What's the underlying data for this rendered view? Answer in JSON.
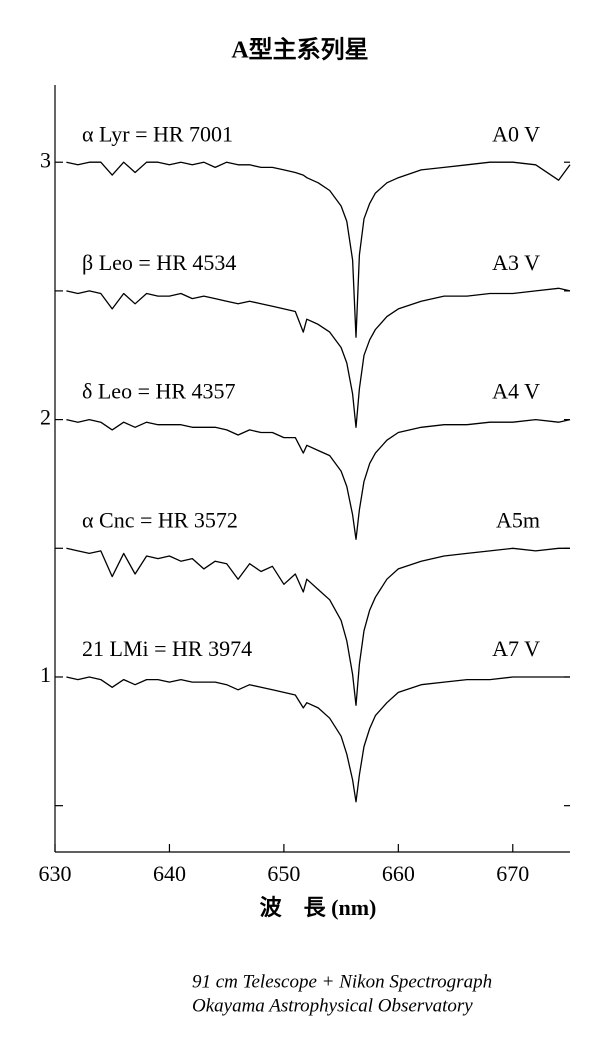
{
  "chart_data": {
    "type": "line",
    "title": "A型主系列星",
    "xlabel": "波　長 (nm)",
    "credits": [
      "91 cm Telescope + Nikon Spectrograph",
      "Okayama Astrophysical Observatory"
    ],
    "x": [
      631,
      632,
      633,
      634,
      635,
      636,
      637,
      638,
      639,
      640,
      641,
      642,
      643,
      644,
      645,
      646,
      647,
      648,
      649,
      650,
      651,
      651.7,
      652,
      653,
      654,
      655,
      655.5,
      656,
      656.3,
      656.6,
      657,
      657.5,
      658,
      659,
      660,
      662,
      664,
      666,
      668,
      670,
      672,
      674,
      675
    ],
    "xlim": [
      630,
      675
    ],
    "xticks": [
      630,
      640,
      650,
      660,
      670
    ],
    "ylim": [
      0.32,
      3.3
    ],
    "yticks": [
      1,
      2,
      3
    ],
    "yticks_minor": [
      0.5,
      1.5,
      2.5
    ],
    "series": [
      {
        "name": "α Lyr = HR 7001",
        "spectral_type": "A0 V",
        "color": "#000000",
        "values": [
          3.0,
          2.99,
          3.0,
          3.0,
          2.95,
          3.0,
          2.96,
          3.0,
          3.0,
          2.99,
          3.0,
          2.99,
          3.0,
          2.98,
          3.0,
          2.99,
          2.99,
          2.98,
          2.98,
          2.97,
          2.96,
          2.95,
          2.94,
          2.92,
          2.89,
          2.83,
          2.77,
          2.62,
          2.32,
          2.64,
          2.78,
          2.84,
          2.88,
          2.92,
          2.94,
          2.97,
          2.98,
          2.99,
          3.0,
          3.0,
          2.99,
          2.93,
          2.99
        ]
      },
      {
        "name": "β Leo = HR 4534",
        "spectral_type": "A3 V",
        "color": "#000000",
        "values": [
          2.5,
          2.49,
          2.5,
          2.49,
          2.43,
          2.49,
          2.45,
          2.49,
          2.48,
          2.48,
          2.49,
          2.47,
          2.48,
          2.47,
          2.46,
          2.45,
          2.46,
          2.45,
          2.44,
          2.43,
          2.42,
          2.34,
          2.39,
          2.37,
          2.34,
          2.28,
          2.22,
          2.1,
          1.97,
          2.12,
          2.25,
          2.31,
          2.35,
          2.4,
          2.43,
          2.46,
          2.48,
          2.48,
          2.49,
          2.49,
          2.5,
          2.51,
          2.5
        ]
      },
      {
        "name": "δ Leo = HR 4357",
        "spectral_type": "A4 V",
        "color": "#000000",
        "values": [
          2.0,
          1.99,
          2.0,
          1.99,
          1.96,
          1.99,
          1.97,
          1.99,
          1.98,
          1.98,
          1.98,
          1.97,
          1.97,
          1.97,
          1.96,
          1.94,
          1.96,
          1.95,
          1.95,
          1.93,
          1.93,
          1.87,
          1.9,
          1.88,
          1.86,
          1.8,
          1.74,
          1.63,
          1.535,
          1.65,
          1.76,
          1.83,
          1.87,
          1.92,
          1.95,
          1.97,
          1.98,
          1.98,
          1.99,
          1.99,
          2.0,
          1.99,
          2.0
        ]
      },
      {
        "name": "α Cnc = HR 3572",
        "spectral_type": "A5m",
        "color": "#000000",
        "values": [
          1.5,
          1.49,
          1.48,
          1.49,
          1.39,
          1.48,
          1.4,
          1.47,
          1.46,
          1.47,
          1.45,
          1.46,
          1.42,
          1.45,
          1.44,
          1.38,
          1.44,
          1.41,
          1.43,
          1.36,
          1.4,
          1.33,
          1.38,
          1.34,
          1.3,
          1.22,
          1.14,
          1.01,
          0.89,
          1.05,
          1.18,
          1.26,
          1.31,
          1.38,
          1.42,
          1.45,
          1.47,
          1.48,
          1.49,
          1.5,
          1.49,
          1.5,
          1.5
        ]
      },
      {
        "name": "21 LMi = HR 3974",
        "spectral_type": "A7 V",
        "color": "#000000",
        "values": [
          1.0,
          0.99,
          1.0,
          0.99,
          0.96,
          0.99,
          0.97,
          0.99,
          0.99,
          0.98,
          0.99,
          0.98,
          0.98,
          0.98,
          0.97,
          0.95,
          0.97,
          0.96,
          0.95,
          0.94,
          0.93,
          0.88,
          0.9,
          0.88,
          0.84,
          0.77,
          0.7,
          0.6,
          0.515,
          0.62,
          0.73,
          0.8,
          0.85,
          0.9,
          0.94,
          0.97,
          0.98,
          0.99,
          0.99,
          1.0,
          1.0,
          1.0,
          1.0
        ]
      }
    ]
  }
}
